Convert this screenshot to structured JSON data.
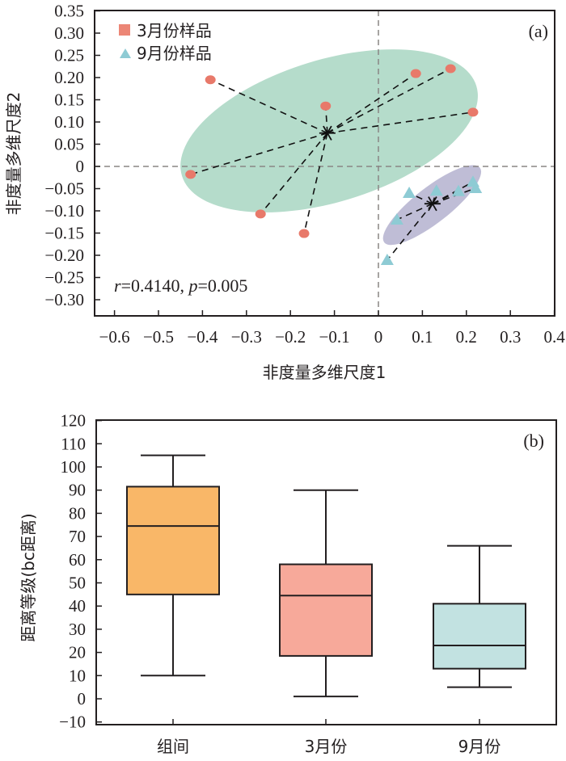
{
  "chart_data": [
    {
      "type": "scatter",
      "panel_label": "(a)",
      "xlabel": "非度量多维尺度1",
      "ylabel": "非度量多维尺度2",
      "xlim": [
        -0.65,
        0.4
      ],
      "ylim": [
        -0.35,
        0.35
      ],
      "xticks": [
        -0.6,
        -0.5,
        -0.4,
        -0.3,
        -0.2,
        -0.1,
        0,
        0.1,
        0.2,
        0.3,
        0.4
      ],
      "xtick_labels": [
        "−0.6",
        "−0.5",
        "−0.4",
        "−0.3",
        "−0.2",
        "−0.1",
        "0",
        "0.1",
        "0.2",
        "0.3",
        "0.4"
      ],
      "yticks": [
        0.35,
        0.3,
        0.25,
        0.2,
        0.15,
        0.1,
        0.05,
        0,
        -0.05,
        -0.1,
        -0.15,
        -0.2,
        -0.25,
        -0.3
      ],
      "ytick_labels": [
        "0.35",
        "0.30",
        "0.25",
        "0.20",
        "0.15",
        "0.10",
        "0.05",
        "0",
        "−0.05",
        "−0.10",
        "−0.15",
        "−0.20",
        "−0.25",
        "−0.30"
      ],
      "reference_lines": {
        "x": 0,
        "y": 0,
        "style": "dashed"
      },
      "annotation": {
        "r_label": "r",
        "r_value": "=0.4140, ",
        "p_label": "p",
        "p_value": "=0.005"
      },
      "legend": {
        "placement": "top-left",
        "entries": [
          {
            "label": "3月份样品",
            "marker": "square",
            "color": "#ec8676"
          },
          {
            "label": "9月份样品",
            "marker": "triangle",
            "color": "#8ecbd4"
          }
        ]
      },
      "series": [
        {
          "name": "3月份样品",
          "marker": "circle",
          "color": "#e8796a",
          "ellipse_color": "#b5dccb",
          "centroid": [
            -0.116,
            0.075
          ],
          "ellipse": {
            "center": [
              -0.112,
              0.08
            ],
            "semi_major": 0.35,
            "semi_minor": 0.16,
            "angle_deg": 17
          },
          "points": [
            {
              "x": -0.382,
              "y": 0.195
            },
            {
              "x": -0.427,
              "y": -0.018
            },
            {
              "x": -0.268,
              "y": -0.107
            },
            {
              "x": -0.169,
              "y": -0.151
            },
            {
              "x": -0.12,
              "y": 0.136
            },
            {
              "x": 0.085,
              "y": 0.209
            },
            {
              "x": 0.164,
              "y": 0.22
            },
            {
              "x": 0.215,
              "y": 0.122
            }
          ]
        },
        {
          "name": "9月份样品",
          "marker": "triangle",
          "color": "#8ecbd4",
          "ellipse_color": "#bfbdd6",
          "centroid": [
            0.123,
            -0.084
          ],
          "ellipse": {
            "center": [
              0.122,
              -0.087
            ],
            "semi_major": 0.138,
            "semi_minor": 0.04,
            "angle_deg": 38
          },
          "points": [
            {
              "x": 0.07,
              "y": -0.06
            },
            {
              "x": 0.132,
              "y": -0.055
            },
            {
              "x": 0.182,
              "y": -0.056
            },
            {
              "x": 0.215,
              "y": -0.035
            },
            {
              "x": 0.221,
              "y": -0.049
            },
            {
              "x": 0.042,
              "y": -0.12
            },
            {
              "x": 0.02,
              "y": -0.211
            }
          ]
        }
      ]
    },
    {
      "type": "box",
      "panel_label": "(b)",
      "xlabel": "",
      "ylabel": "距离等级(bc距离)",
      "ylim": [
        -10,
        120
      ],
      "yticks": [
        120,
        110,
        100,
        90,
        80,
        70,
        60,
        50,
        40,
        30,
        20,
        10,
        0,
        -10
      ],
      "ytick_labels": [
        "120",
        "110",
        "100",
        "90",
        "80",
        "70",
        "60",
        "50",
        "40",
        "30",
        "20",
        "10",
        "0",
        "−10"
      ],
      "categories": [
        "组间",
        "3月份",
        "9月份"
      ],
      "boxes": [
        {
          "category": "组间",
          "min": 10,
          "q1": 45,
          "median": 74.5,
          "q3": 91.5,
          "max": 105,
          "color": "#f9b768"
        },
        {
          "category": "3月份",
          "min": 1,
          "q1": 18.5,
          "median": 44.5,
          "q3": 58,
          "max": 90,
          "color": "#f7a99a"
        },
        {
          "category": "9月份",
          "min": 5,
          "q1": 13,
          "median": 23,
          "q3": 41,
          "max": 66,
          "color": "#c2e2e1"
        }
      ]
    }
  ]
}
